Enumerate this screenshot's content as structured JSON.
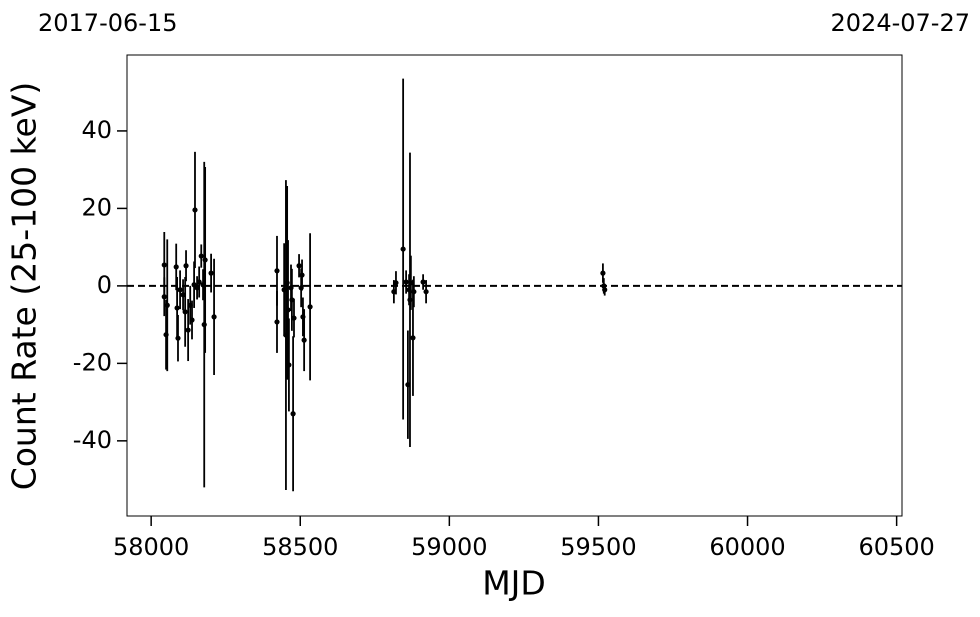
{
  "chart_data": {
    "type": "errorbar",
    "top_labels": [
      "2017-06-15",
      "2024-07-27"
    ],
    "xlabel": "MJD",
    "ylabel": "Count Rate (25-100 keV)",
    "xlim": [
      57919,
      60518
    ],
    "ylim": [
      -59.4,
      59.6
    ],
    "xticks": [
      58000,
      58500,
      59000,
      59500,
      60000,
      60500
    ],
    "yticks": [
      -40,
      -20,
      0,
      20,
      40
    ],
    "reference_line": 0,
    "series": [
      {
        "color": "#000000",
        "x": [
          58044,
          58044,
          58050,
          58054,
          58084,
          58087,
          58090,
          58097,
          58107,
          58114,
          58117,
          58124,
          58131,
          58137,
          58144,
          58147,
          58154,
          58161,
          58168,
          58174,
          58178,
          58181,
          58201,
          58211,
          58422,
          58422,
          58446,
          58452,
          58456,
          58459,
          58462,
          58469,
          58472,
          58476,
          58479,
          58496,
          58503,
          58506,
          58509,
          58513,
          58533,
          58814,
          58821,
          58845,
          58855,
          58861,
          58865,
          58868,
          58871,
          58878,
          58881,
          58912,
          58922,
          59515,
          59518,
          59521
        ],
        "values": [
          5.4,
          -2.8,
          -12.6,
          -5,
          4.9,
          -5.7,
          -13.5,
          -1,
          -2.3,
          -6.7,
          5.2,
          -11.4,
          -5,
          -8.8,
          0.3,
          19.6,
          -0.5,
          1,
          7.7,
          0.3,
          -10,
          6.7,
          3.3,
          -8,
          3.9,
          -9.3,
          -1,
          -12.7,
          0.8,
          -6.2,
          -20.4,
          -0.5,
          -3.6,
          -33,
          -8.3,
          5.2,
          -0.5,
          2.8,
          -8,
          -14,
          -5.4,
          -1.5,
          0.8,
          9.5,
          1,
          -25.5,
          -1,
          -3.6,
          0.8,
          -13.4,
          -1.5,
          1,
          -1.5,
          3.3,
          0,
          -1
        ],
        "errors": [
          8.5,
          5,
          9,
          17,
          6,
          8,
          6,
          5,
          4,
          9,
          4,
          8,
          5,
          5,
          6,
          15,
          3,
          4,
          3,
          4,
          42,
          24,
          5,
          15,
          9,
          8,
          12,
          40,
          25,
          18,
          12,
          6,
          8,
          20,
          5,
          3,
          5,
          4,
          5,
          8,
          19,
          3,
          3,
          44,
          3,
          14,
          4,
          38,
          7,
          15,
          4,
          2,
          3,
          2.5,
          2,
          1.5
        ]
      }
    ]
  }
}
